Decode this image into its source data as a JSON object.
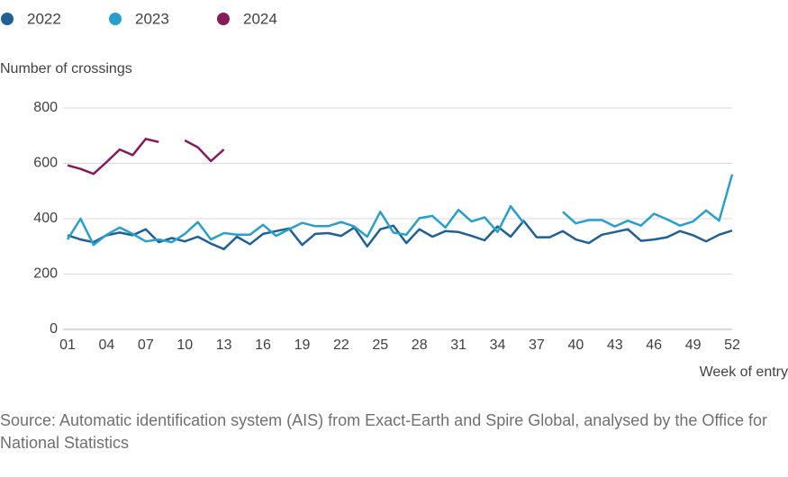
{
  "chart_data": {
    "type": "line",
    "y_label": "Number of crossings",
    "x_label": "Week of entry",
    "source": "Source: Automatic identification system (AIS) from Exact-Earth and Spire Global, analysed by the Office for National Statistics",
    "categories": [
      "01",
      null,
      null,
      "04",
      null,
      null,
      "07",
      null,
      null,
      "10",
      null,
      null,
      "13",
      null,
      null,
      "16",
      null,
      null,
      "19",
      null,
      null,
      "22",
      null,
      null,
      "25",
      null,
      null,
      "28",
      null,
      null,
      "31",
      null,
      null,
      "34",
      null,
      null,
      "37",
      null,
      null,
      "40",
      null,
      null,
      "43",
      null,
      null,
      "46",
      null,
      null,
      "49",
      null,
      null,
      "52"
    ],
    "ylim": [
      0,
      800
    ],
    "yticks": [
      0,
      200,
      400,
      600,
      800
    ],
    "grid": true,
    "series": [
      {
        "name": "2022",
        "color": "#206095",
        "values": [
          340,
          325,
          315,
          340,
          350,
          340,
          362,
          315,
          330,
          318,
          335,
          310,
          290,
          335,
          308,
          345,
          355,
          365,
          305,
          345,
          348,
          338,
          368,
          300,
          362,
          375,
          312,
          362,
          335,
          355,
          352,
          338,
          322,
          372,
          335,
          392,
          333,
          333,
          355,
          325,
          312,
          342,
          352,
          362,
          320,
          325,
          333,
          355,
          340,
          318,
          342,
          357
        ]
      },
      {
        "name": "2023",
        "color": "#27a0cc",
        "values": [
          325,
          400,
          305,
          342,
          368,
          345,
          318,
          325,
          315,
          345,
          388,
          325,
          348,
          342,
          342,
          378,
          338,
          362,
          385,
          373,
          373,
          388,
          372,
          335,
          425,
          350,
          342,
          402,
          410,
          368,
          432,
          390,
          405,
          352,
          445,
          385,
          null,
          null,
          425,
          383,
          395,
          395,
          372,
          393,
          375,
          418,
          398,
          375,
          390,
          430,
          393,
          560
        ]
      },
      {
        "name": "2024",
        "color": "#871a5b",
        "values": [
          593,
          580,
          562,
          605,
          650,
          630,
          688,
          677,
          null,
          683,
          658,
          608,
          650,
          null,
          null,
          null,
          null,
          null,
          null,
          null,
          null,
          null,
          null,
          null,
          null,
          null,
          null,
          null,
          null,
          null,
          null,
          null,
          null,
          null,
          null,
          null,
          null,
          null,
          null,
          null,
          null,
          null,
          null,
          null,
          null,
          null,
          null,
          null,
          null,
          null,
          null,
          null
        ]
      }
    ]
  }
}
